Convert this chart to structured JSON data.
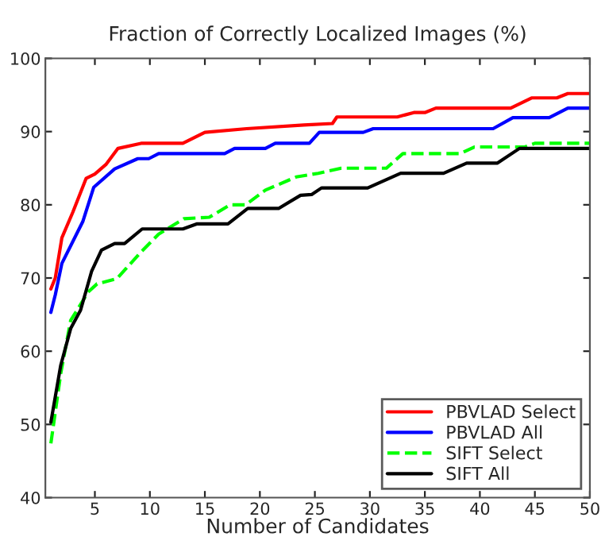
{
  "chart_data": {
    "type": "line",
    "title": "Fraction of Correctly Localized Images (%)",
    "xlabel": "Number of Candidates",
    "xlim": [
      0.5,
      50
    ],
    "ylim": [
      40,
      100
    ],
    "xticks": [
      5,
      10,
      15,
      20,
      25,
      30,
      35,
      40,
      45,
      50
    ],
    "yticks": [
      40,
      50,
      60,
      70,
      80,
      90,
      100
    ],
    "legend": "bottom right",
    "grid": false,
    "series": [
      {
        "name": "PBVLAD Select",
        "color": "#ff0000",
        "line_style": "solid",
        "x": [
          1,
          1.4,
          2,
          3,
          4.2,
          5,
          6,
          7.1,
          9.2,
          13,
          15,
          18.8,
          24,
          26.6,
          27,
          32.5,
          34,
          35,
          36,
          42.8,
          44.7,
          47,
          48,
          50
        ],
        "values": [
          68.5,
          70,
          75.5,
          79,
          83.6,
          84.2,
          85.5,
          87.7,
          88.4,
          88.4,
          89.9,
          90.4,
          90.9,
          91.1,
          92,
          92,
          92.6,
          92.6,
          93.2,
          93.2,
          94.6,
          94.6,
          95.2,
          95.2
        ]
      },
      {
        "name": "PBVLAD All",
        "color": "#0000ff",
        "line_style": "solid",
        "x": [
          1,
          1.4,
          2,
          3.9,
          4.9,
          6.8,
          8.9,
          9.9,
          10.8,
          16.8,
          17.7,
          20.5,
          21.4,
          24.5,
          25.4,
          29.4,
          30.3,
          41.2,
          43,
          46.3,
          48,
          50
        ],
        "values": [
          65.3,
          67.7,
          72,
          77.7,
          82.4,
          84.9,
          86.3,
          86.3,
          87,
          87,
          87.7,
          87.7,
          88.4,
          88.4,
          89.9,
          89.9,
          90.4,
          90.4,
          91.9,
          91.9,
          93.2,
          93.2
        ]
      },
      {
        "name": "SIFT Select",
        "color": "#00ff00",
        "line_style": "dashed",
        "x": [
          1,
          1.9,
          2.8,
          4.4,
          5.2,
          7,
          9.1,
          10.8,
          13.1,
          15.4,
          17.3,
          18.7,
          20.5,
          23.3,
          25.3,
          27.4,
          31.5,
          33,
          38.2,
          39.5,
          44.1,
          45,
          50
        ],
        "values": [
          47.4,
          57,
          64.2,
          68.1,
          69.2,
          69.9,
          73.4,
          76,
          78.1,
          78.3,
          80,
          80,
          82,
          83.8,
          84.3,
          85,
          85,
          87,
          87,
          87.9,
          87.9,
          88.4,
          88.4
        ]
      },
      {
        "name": "SIFT All",
        "color": "#000000",
        "line_style": "solid",
        "x": [
          1,
          1.9,
          2.8,
          3.7,
          4.7,
          5.6,
          6.8,
          7.7,
          9.3,
          13,
          14.3,
          17.1,
          18.9,
          21.7,
          23.7,
          24.7,
          25.6,
          29.8,
          32.8,
          36.7,
          38.8,
          41.6,
          43.6,
          50
        ],
        "values": [
          50.3,
          58.1,
          63.1,
          65.6,
          70.9,
          73.8,
          74.7,
          74.7,
          76.7,
          76.7,
          77.4,
          77.4,
          79.5,
          79.5,
          81.3,
          81.4,
          82.3,
          82.3,
          84.3,
          84.3,
          85.7,
          85.7,
          87.7,
          87.7
        ]
      }
    ]
  }
}
